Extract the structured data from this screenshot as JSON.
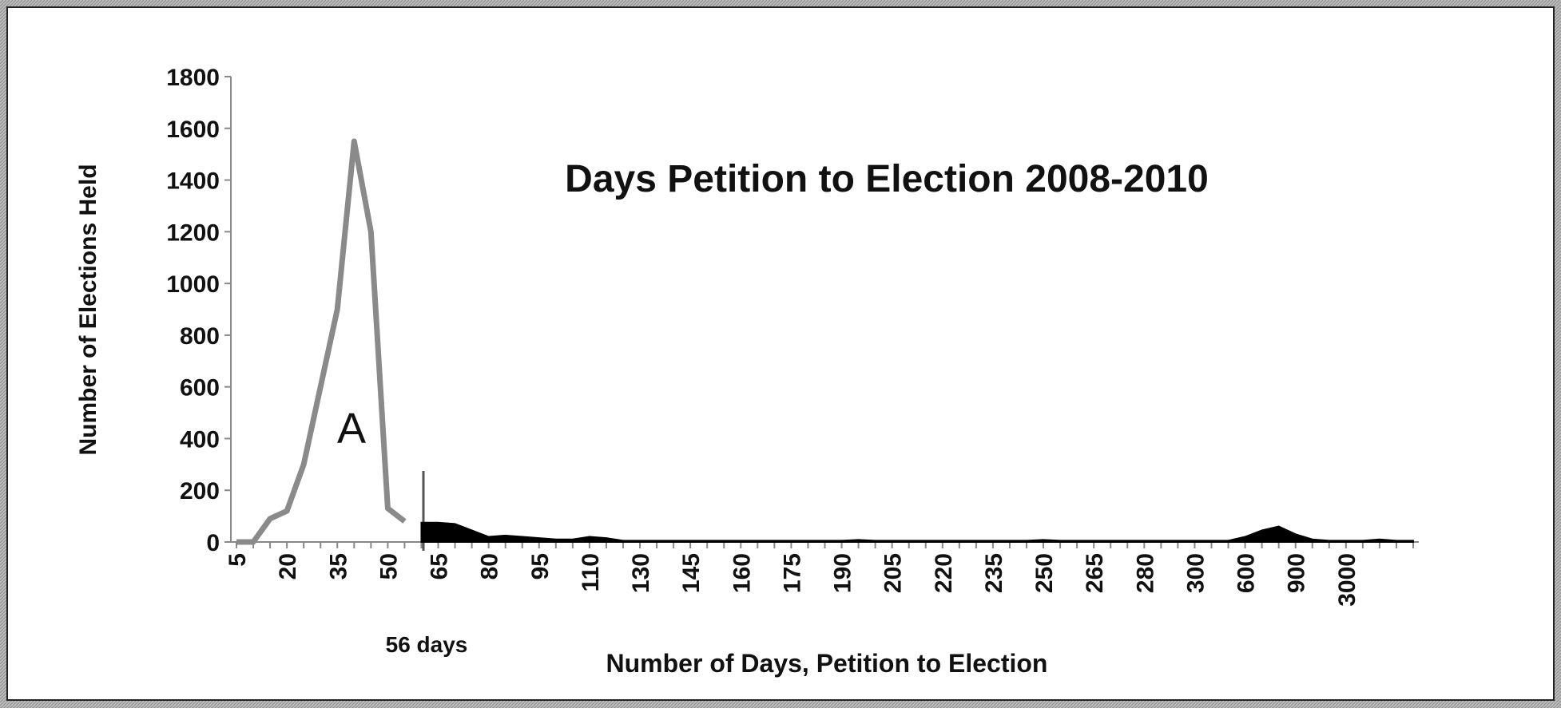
{
  "chart_data": {
    "type": "line",
    "title": "Days Petition to Election 2008-2010",
    "xlabel": "Number of Days, Petition to Election",
    "ylabel": "Number of Elections Held",
    "annotations": [
      "A",
      "56 days"
    ],
    "categories": [
      "5",
      null,
      null,
      "20",
      null,
      null,
      "35",
      null,
      null,
      "50",
      null,
      null,
      "65",
      null,
      null,
      "80",
      null,
      null,
      "95",
      null,
      null,
      "110",
      null,
      null,
      "130",
      null,
      null,
      "145",
      null,
      null,
      "160",
      null,
      null,
      "175",
      null,
      null,
      "190",
      null,
      null,
      "205",
      null,
      null,
      "220",
      null,
      null,
      "235",
      null,
      null,
      "250",
      null,
      null,
      "265",
      null,
      null,
      "280",
      null,
      null,
      "300",
      null,
      null,
      "600",
      null,
      null,
      "900",
      null,
      null,
      "3000",
      null,
      null,
      null,
      null
    ],
    "series": [
      {
        "color": "#8a8a8a",
        "fill": false,
        "values": [
          0,
          0,
          90,
          120,
          300,
          600,
          900,
          1550,
          1200,
          130,
          80,
          null,
          null,
          null,
          null,
          null,
          null,
          null,
          null,
          null,
          null,
          null,
          null,
          null,
          null,
          null,
          null,
          null,
          null,
          null,
          null,
          null,
          null,
          null,
          null,
          null,
          null,
          null,
          null,
          null,
          null,
          null,
          null,
          null,
          null,
          null,
          null,
          null,
          null,
          null,
          null,
          null,
          null,
          null,
          null,
          null,
          null,
          null,
          null,
          null,
          null,
          null,
          null,
          null,
          null,
          null,
          null,
          null,
          null,
          null,
          null
        ]
      },
      {
        "color": "#000000",
        "fill": true,
        "values": [
          null,
          null,
          null,
          null,
          null,
          null,
          null,
          null,
          null,
          null,
          null,
          75,
          75,
          70,
          45,
          20,
          25,
          20,
          15,
          10,
          10,
          20,
          15,
          5,
          5,
          5,
          5,
          5,
          5,
          5,
          5,
          5,
          5,
          5,
          5,
          5,
          5,
          8,
          5,
          5,
          5,
          5,
          5,
          5,
          5,
          5,
          5,
          5,
          8,
          5,
          5,
          5,
          5,
          5,
          5,
          5,
          5,
          5,
          5,
          5,
          20,
          45,
          60,
          30,
          10,
          5,
          5,
          5,
          10,
          5,
          5
        ]
      }
    ],
    "ylim": [
      0,
      1800
    ],
    "yticks": [
      0,
      200,
      400,
      600,
      800,
      1000,
      1200,
      1400,
      1600,
      1800
    ]
  }
}
